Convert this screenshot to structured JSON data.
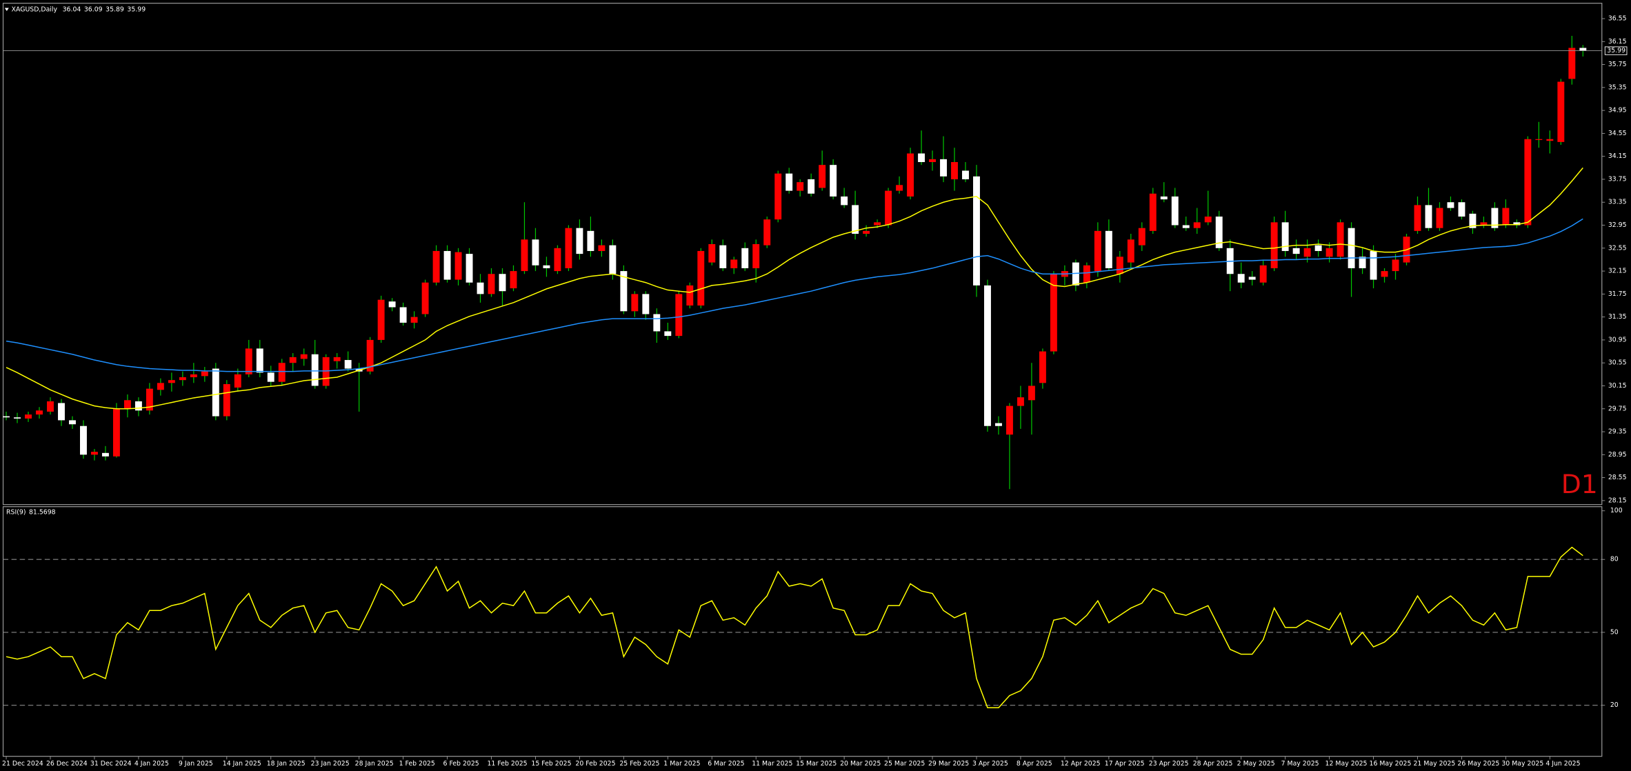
{
  "chart_data": {
    "type": "candlestick",
    "title": "XAGUSD,Daily",
    "timeframe": "D1",
    "up_color": "#ff0000",
    "down_color": "#ffffff",
    "wick_color": "#00c800",
    "ylim": [
      28.08,
      36.8
    ],
    "yticks": [
      36.55,
      36.15,
      35.75,
      35.35,
      34.95,
      34.55,
      34.15,
      33.75,
      33.35,
      32.95,
      32.55,
      32.15,
      31.75,
      31.35,
      30.95,
      30.55,
      30.15,
      29.75,
      29.35,
      28.95,
      28.55,
      28.15
    ],
    "categories": [
      "21 Dec 2024",
      null,
      null,
      null,
      "26 Dec 2024",
      null,
      null,
      null,
      "31 Dec 2024",
      null,
      null,
      null,
      "4 Jan 2025",
      null,
      null,
      null,
      "9 Jan 2025",
      null,
      null,
      null,
      "14 Jan 2025",
      null,
      null,
      null,
      "18 Jan 2025",
      null,
      null,
      null,
      "23 Jan 2025",
      null,
      null,
      null,
      "28 Jan 2025",
      null,
      null,
      null,
      "1 Feb 2025",
      null,
      null,
      null,
      "6 Feb 2025",
      null,
      null,
      null,
      "11 Feb 2025",
      null,
      null,
      null,
      "15 Feb 2025",
      null,
      null,
      null,
      "20 Feb 2025",
      null,
      null,
      null,
      "25 Feb 2025",
      null,
      null,
      null,
      "1 Mar 2025",
      null,
      null,
      null,
      "6 Mar 2025",
      null,
      null,
      null,
      "11 Mar 2025",
      null,
      null,
      null,
      "15 Mar 2025",
      null,
      null,
      null,
      "20 Mar 2025",
      null,
      null,
      null,
      "25 Mar 2025",
      null,
      null,
      null,
      "29 Mar 2025",
      null,
      null,
      null,
      "3 Apr 2025",
      null,
      null,
      null,
      "8 Apr 2025",
      null,
      null,
      null,
      "12 Apr 2025",
      null,
      null,
      null,
      "17 Apr 2025",
      null,
      null,
      null,
      "23 Apr 2025",
      null,
      null,
      null,
      "28 Apr 2025",
      null,
      null,
      null,
      "2 May 2025",
      null,
      null,
      null,
      "7 May 2025",
      null,
      null,
      null,
      "12 May 2025",
      null,
      null,
      null,
      "16 May 2025",
      null,
      null,
      null,
      "21 May 2025",
      null,
      null,
      null,
      "26 May 2025",
      null,
      null,
      null,
      "30 May 2025",
      null,
      null,
      null,
      "4 Jun 2025",
      null,
      null,
      null
    ],
    "open": [
      29.62,
      29.6,
      29.58,
      29.65,
      29.7,
      29.85,
      29.55,
      29.45,
      28.95,
      28.98,
      28.92,
      29.75,
      29.88,
      29.72,
      30.08,
      30.2,
      30.25,
      30.3,
      30.32,
      30.45,
      29.62,
      30.12,
      30.35,
      30.8,
      30.38,
      30.22,
      30.55,
      30.62,
      30.7,
      30.15,
      30.58,
      30.6,
      30.45,
      30.4,
      30.95,
      31.62,
      31.52,
      31.25,
      31.4,
      31.95,
      32.5,
      32.0,
      32.45,
      31.95,
      31.75,
      32.1,
      31.85,
      32.15,
      32.7,
      32.25,
      32.15,
      32.2,
      32.9,
      32.85,
      32.5,
      32.6,
      32.15,
      31.45,
      31.75,
      31.4,
      31.1,
      31.02,
      31.55,
      31.55,
      32.3,
      32.6,
      32.2,
      32.55,
      32.2,
      32.6,
      33.05,
      33.85,
      33.55,
      33.75,
      33.6,
      34.0,
      33.45,
      33.3,
      32.8,
      32.95,
      32.95,
      33.55,
      33.45,
      34.2,
      34.05,
      34.1,
      33.75,
      33.9,
      33.8,
      31.9,
      29.5,
      29.3,
      29.8,
      29.9,
      30.2,
      30.75,
      32.05,
      32.3,
      31.95,
      32.15,
      32.85,
      32.1,
      32.3,
      32.6,
      32.85,
      33.45,
      33.45,
      32.95,
      32.9,
      33.0,
      33.1,
      32.55,
      32.1,
      32.05,
      31.95,
      32.2,
      33.0,
      32.55,
      32.4,
      32.6,
      32.4,
      32.4,
      32.9,
      32.4,
      32.5,
      32.05,
      32.15,
      32.3,
      32.85,
      33.3,
      32.9,
      33.35,
      33.35,
      33.15,
      32.95,
      33.25,
      32.95,
      33.0,
      32.95,
      34.45,
      34.42,
      34.4,
      35.5,
      36.04
    ],
    "high": [
      29.7,
      29.68,
      29.7,
      29.78,
      29.95,
      29.92,
      29.62,
      29.55,
      29.05,
      29.1,
      29.85,
      30.0,
      29.95,
      30.2,
      30.28,
      30.38,
      30.4,
      30.55,
      30.48,
      30.55,
      30.25,
      30.45,
      30.95,
      30.95,
      30.5,
      30.62,
      30.72,
      30.8,
      30.95,
      30.7,
      30.72,
      30.75,
      30.55,
      31.0,
      31.72,
      31.68,
      31.6,
      31.45,
      32.0,
      32.6,
      32.6,
      32.55,
      32.55,
      32.1,
      32.2,
      32.2,
      32.25,
      33.35,
      32.9,
      32.4,
      32.6,
      32.95,
      33.05,
      33.1,
      32.7,
      32.7,
      32.25,
      31.8,
      31.8,
      31.5,
      31.25,
      31.8,
      31.95,
      32.55,
      32.7,
      32.7,
      32.4,
      32.65,
      32.7,
      33.1,
      33.9,
      33.95,
      33.75,
      33.85,
      34.25,
      34.1,
      33.6,
      33.55,
      32.95,
      33.05,
      33.6,
      33.8,
      34.3,
      34.6,
      34.25,
      34.5,
      34.3,
      34.05,
      34.0,
      32.0,
      29.62,
      29.85,
      30.15,
      30.55,
      30.8,
      32.15,
      32.25,
      32.35,
      32.3,
      33.0,
      33.05,
      32.5,
      32.8,
      33.0,
      33.6,
      33.7,
      33.6,
      33.1,
      33.25,
      33.55,
      33.2,
      32.7,
      32.3,
      32.15,
      32.35,
      33.1,
      33.2,
      32.7,
      32.7,
      32.7,
      32.65,
      33.05,
      33.0,
      32.55,
      32.6,
      32.2,
      32.45,
      32.8,
      33.45,
      33.6,
      33.35,
      33.45,
      33.4,
      33.2,
      33.1,
      33.35,
      33.4,
      33.05,
      34.5,
      34.75,
      34.6,
      35.5,
      36.25,
      36.09
    ],
    "low": [
      29.55,
      29.5,
      29.52,
      29.58,
      29.65,
      29.45,
      29.4,
      28.88,
      28.85,
      28.85,
      28.9,
      29.6,
      29.62,
      29.65,
      29.98,
      30.05,
      30.15,
      30.2,
      30.22,
      29.55,
      29.55,
      30.05,
      30.3,
      30.3,
      30.15,
      30.15,
      30.4,
      30.5,
      30.1,
      30.1,
      30.45,
      30.4,
      29.7,
      30.35,
      30.9,
      31.45,
      31.2,
      31.15,
      31.35,
      31.9,
      31.95,
      31.9,
      31.9,
      31.6,
      31.7,
      31.55,
      31.8,
      32.1,
      32.15,
      32.05,
      32.1,
      32.15,
      32.35,
      32.4,
      32.4,
      32.0,
      31.4,
      31.35,
      31.3,
      30.9,
      30.95,
      30.98,
      31.5,
      31.5,
      32.25,
      32.15,
      32.1,
      32.15,
      31.95,
      32.55,
      33.0,
      33.5,
      33.45,
      33.45,
      33.55,
      33.4,
      33.25,
      32.7,
      32.75,
      32.9,
      32.9,
      33.5,
      33.4,
      34.0,
      33.9,
      33.7,
      33.55,
      33.7,
      31.7,
      29.35,
      29.3,
      28.35,
      29.4,
      29.3,
      30.1,
      30.7,
      31.9,
      31.8,
      31.85,
      32.05,
      32.15,
      31.95,
      32.2,
      32.5,
      32.8,
      33.35,
      32.9,
      32.85,
      32.8,
      32.95,
      32.5,
      31.8,
      31.85,
      31.9,
      31.9,
      32.15,
      32.4,
      32.35,
      32.3,
      32.4,
      32.3,
      32.35,
      31.7,
      32.1,
      31.85,
      31.95,
      32.0,
      32.25,
      32.8,
      32.85,
      32.85,
      33.2,
      33.05,
      32.8,
      32.9,
      32.85,
      32.9,
      32.9,
      32.9,
      34.3,
      34.2,
      34.35,
      35.4,
      35.89
    ],
    "close": [
      29.6,
      29.58,
      29.65,
      29.72,
      29.88,
      29.55,
      29.48,
      28.95,
      29.0,
      28.92,
      29.75,
      29.9,
      29.72,
      30.1,
      30.2,
      30.25,
      30.3,
      30.35,
      30.4,
      29.62,
      30.18,
      30.35,
      30.8,
      30.38,
      30.22,
      30.55,
      30.65,
      30.7,
      30.15,
      30.65,
      30.65,
      30.45,
      30.4,
      30.95,
      31.65,
      31.52,
      31.25,
      31.35,
      31.95,
      32.5,
      32.0,
      32.48,
      31.95,
      31.75,
      32.1,
      31.8,
      32.15,
      32.7,
      32.25,
      32.2,
      32.55,
      32.9,
      32.45,
      32.5,
      32.6,
      32.1,
      31.45,
      31.75,
      31.4,
      31.1,
      31.02,
      31.75,
      31.9,
      32.5,
      32.62,
      32.2,
      32.35,
      32.2,
      32.62,
      33.05,
      33.85,
      33.55,
      33.7,
      33.5,
      34.0,
      33.45,
      33.3,
      32.8,
      32.85,
      33.0,
      33.55,
      33.65,
      34.2,
      34.05,
      34.1,
      33.8,
      34.05,
      33.75,
      31.9,
      29.45,
      29.45,
      29.8,
      29.95,
      30.15,
      30.75,
      32.1,
      32.15,
      31.9,
      32.25,
      32.85,
      32.2,
      32.4,
      32.7,
      32.9,
      33.5,
      33.4,
      32.95,
      32.9,
      33.0,
      33.1,
      32.55,
      32.1,
      31.95,
      32.0,
      32.25,
      33.0,
      32.5,
      32.45,
      32.55,
      32.5,
      32.55,
      33.0,
      32.2,
      32.2,
      32.0,
      32.15,
      32.35,
      32.75,
      33.3,
      32.9,
      33.25,
      33.25,
      33.1,
      32.9,
      33.0,
      32.9,
      33.25,
      32.95,
      34.45,
      34.45,
      34.45,
      35.45,
      36.04,
      35.99
    ],
    "overlays": [
      {
        "color": "#ffff00",
        "values": [
          30.47,
          30.38,
          30.28,
          30.18,
          30.08,
          30.0,
          29.92,
          29.86,
          29.8,
          29.77,
          29.75,
          29.75,
          29.76,
          29.78,
          29.82,
          29.86,
          29.9,
          29.94,
          29.97,
          30.0,
          30.03,
          30.06,
          30.08,
          30.12,
          30.14,
          30.16,
          30.2,
          30.24,
          30.26,
          30.28,
          30.3,
          30.36,
          30.42,
          30.48,
          30.55,
          30.65,
          30.75,
          30.85,
          30.95,
          31.1,
          31.2,
          31.28,
          31.36,
          31.42,
          31.48,
          31.54,
          31.6,
          31.68,
          31.76,
          31.84,
          31.9,
          31.96,
          32.02,
          32.06,
          32.08,
          32.1,
          32.05,
          32.0,
          31.95,
          31.88,
          31.82,
          31.8,
          31.78,
          31.84,
          31.9,
          31.92,
          31.95,
          31.98,
          32.02,
          32.1,
          32.22,
          32.35,
          32.46,
          32.56,
          32.65,
          32.74,
          32.8,
          32.85,
          32.9,
          32.92,
          32.96,
          33.02,
          33.1,
          33.2,
          33.28,
          33.35,
          33.4,
          33.42,
          33.45,
          33.3,
          33.0,
          32.7,
          32.42,
          32.18,
          32.0,
          31.9,
          31.88,
          31.92,
          31.95,
          32.0,
          32.05,
          32.1,
          32.18,
          32.26,
          32.35,
          32.42,
          32.48,
          32.52,
          32.56,
          32.6,
          32.64,
          32.66,
          32.62,
          32.58,
          32.54,
          32.55,
          32.58,
          32.6,
          32.6,
          32.62,
          32.6,
          32.62,
          32.6,
          32.56,
          32.5,
          32.48,
          32.48,
          32.52,
          32.6,
          32.7,
          32.78,
          32.85,
          32.9,
          32.94,
          32.95,
          32.95,
          32.96,
          32.96,
          33.0,
          33.15,
          33.3,
          33.5,
          33.72,
          33.95
        ]
      },
      {
        "color": "#1e90ff",
        "values": [
          30.93,
          30.9,
          30.86,
          30.82,
          30.78,
          30.74,
          30.7,
          30.65,
          30.6,
          30.56,
          30.52,
          30.49,
          30.47,
          30.45,
          30.44,
          30.43,
          30.42,
          30.42,
          30.41,
          30.41,
          30.4,
          30.4,
          30.4,
          30.4,
          30.4,
          30.4,
          30.4,
          30.41,
          30.41,
          30.41,
          30.42,
          30.43,
          30.45,
          30.48,
          30.52,
          30.56,
          30.6,
          30.64,
          30.68,
          30.72,
          30.76,
          30.8,
          30.84,
          30.88,
          30.92,
          30.96,
          31.0,
          31.04,
          31.08,
          31.12,
          31.16,
          31.2,
          31.24,
          31.27,
          31.3,
          31.32,
          31.32,
          31.32,
          31.32,
          31.32,
          31.33,
          31.35,
          31.38,
          31.42,
          31.46,
          31.5,
          31.53,
          31.56,
          31.6,
          31.64,
          31.68,
          31.72,
          31.76,
          31.8,
          31.85,
          31.9,
          31.95,
          31.99,
          32.02,
          32.05,
          32.07,
          32.09,
          32.12,
          32.16,
          32.2,
          32.25,
          32.3,
          32.35,
          32.4,
          32.42,
          32.36,
          32.28,
          32.2,
          32.14,
          32.1,
          32.1,
          32.1,
          32.11,
          32.12,
          32.14,
          32.16,
          32.18,
          32.2,
          32.22,
          32.24,
          32.26,
          32.27,
          32.28,
          32.29,
          32.3,
          32.31,
          32.32,
          32.33,
          32.33,
          32.34,
          32.34,
          32.35,
          32.35,
          32.36,
          32.36,
          32.37,
          32.37,
          32.38,
          32.38,
          32.38,
          32.39,
          32.4,
          32.42,
          32.44,
          32.46,
          32.48,
          32.5,
          32.52,
          32.54,
          32.56,
          32.57,
          32.58,
          32.6,
          32.64,
          32.7,
          32.76,
          32.84,
          32.94,
          33.06
        ]
      }
    ],
    "rsi": {
      "name": "RSI(9)",
      "color": "#ffff00",
      "ylim": [
        -1,
        101.7
      ],
      "yticks": [
        100,
        80,
        50,
        20
      ],
      "levels": [
        80,
        50,
        20
      ],
      "values": [
        40,
        39,
        40,
        42,
        44,
        40,
        40,
        31,
        33,
        31,
        49,
        54,
        51,
        59,
        59,
        61,
        62,
        64,
        66,
        43,
        52,
        61,
        66,
        55,
        52,
        57,
        60,
        61,
        50,
        58,
        59,
        52,
        51,
        60,
        70,
        67,
        61,
        63,
        70,
        77,
        67,
        71,
        60,
        63,
        58,
        62,
        61,
        67,
        58,
        58,
        62,
        65,
        58,
        64,
        57,
        58,
        40,
        48,
        45,
        40,
        37,
        51,
        48,
        61,
        63,
        55,
        56,
        53,
        60,
        65,
        75,
        69,
        70,
        69,
        72,
        60,
        59,
        49,
        49,
        51,
        61,
        61,
        70,
        67,
        66,
        59,
        56,
        58,
        31,
        19,
        19,
        24,
        26,
        31,
        40,
        55,
        56,
        53,
        57,
        63,
        54,
        57,
        60,
        62,
        68,
        66,
        58,
        57,
        59,
        61,
        52,
        43,
        41,
        41,
        47,
        60,
        52,
        52,
        55,
        53,
        51,
        58,
        45,
        50,
        44,
        46,
        50,
        57,
        65,
        58,
        62,
        65,
        61,
        55,
        53,
        58,
        51,
        52,
        73,
        73,
        73,
        81,
        85,
        81.5698
      ]
    }
  }
}
